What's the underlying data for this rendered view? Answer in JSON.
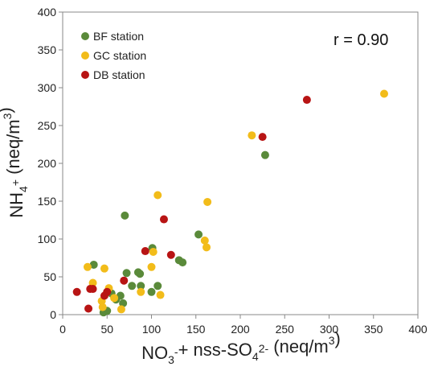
{
  "chart_data": {
    "type": "scatter",
    "xlim": [
      0,
      400
    ],
    "ylim": [
      0,
      400
    ],
    "x_ticks": [
      "0",
      "50",
      "100",
      "150",
      "200",
      "250",
      "300",
      "350",
      "400"
    ],
    "y_ticks": [
      "0",
      "50",
      "100",
      "150",
      "200",
      "250",
      "300",
      "350",
      "400"
    ],
    "xlabel": {
      "parts": [
        {
          "text": "NO",
          "style": "normal"
        },
        {
          "text": "3",
          "style": "sub"
        },
        {
          "text": "-",
          "style": "sup"
        },
        {
          "text": "+ nss-SO",
          "style": "normal"
        },
        {
          "text": "4",
          "style": "sub"
        },
        {
          "text": "2-",
          "style": "sup"
        },
        {
          "text": " (neq/m",
          "style": "normal"
        },
        {
          "text": "3",
          "style": "sup"
        },
        {
          "text": ")",
          "style": "normal"
        }
      ]
    },
    "ylabel": {
      "parts": [
        {
          "text": "NH",
          "style": "normal"
        },
        {
          "text": "4",
          "style": "sub"
        },
        {
          "text": "+",
          "style": "sup"
        },
        {
          "text": " (neq/m",
          "style": "normal"
        },
        {
          "text": "3",
          "style": "sup"
        },
        {
          "text": ")",
          "style": "normal"
        }
      ]
    },
    "annotation": "r = 0.90",
    "legend_position": "top-left",
    "grid": false,
    "series": [
      {
        "name": "BF station",
        "color": "#5a8a3a",
        "points": [
          [
            46,
            3
          ],
          [
            60,
            20
          ],
          [
            65,
            25
          ],
          [
            68,
            15
          ],
          [
            70,
            131
          ],
          [
            72,
            55
          ],
          [
            78,
            38
          ],
          [
            85,
            56
          ],
          [
            88,
            38
          ],
          [
            100,
            30
          ],
          [
            101,
            88
          ],
          [
            107,
            38
          ],
          [
            131,
            72
          ],
          [
            135,
            69
          ],
          [
            153,
            106
          ],
          [
            35,
            66
          ],
          [
            228,
            211
          ],
          [
            50,
            5
          ],
          [
            55,
            28
          ],
          [
            87,
            54
          ]
        ]
      },
      {
        "name": "GC station",
        "color": "#f2bc1a",
        "points": [
          [
            28,
            63
          ],
          [
            34,
            42
          ],
          [
            45,
            10
          ],
          [
            47,
            61
          ],
          [
            52,
            35
          ],
          [
            58,
            22
          ],
          [
            66,
            7
          ],
          [
            100,
            63
          ],
          [
            102,
            83
          ],
          [
            107,
            158
          ],
          [
            110,
            26
          ],
          [
            160,
            98
          ],
          [
            162,
            89
          ],
          [
            163,
            149
          ],
          [
            213,
            237
          ],
          [
            362,
            292
          ],
          [
            44,
            18
          ],
          [
            88,
            30
          ]
        ]
      },
      {
        "name": "DB station",
        "color": "#b81414",
        "points": [
          [
            16,
            30
          ],
          [
            29,
            8
          ],
          [
            31,
            34
          ],
          [
            34,
            34
          ],
          [
            47,
            25
          ],
          [
            50,
            30
          ],
          [
            69,
            45
          ],
          [
            93,
            84
          ],
          [
            114,
            126
          ],
          [
            122,
            79
          ],
          [
            225,
            235
          ],
          [
            275,
            284
          ]
        ]
      }
    ]
  }
}
